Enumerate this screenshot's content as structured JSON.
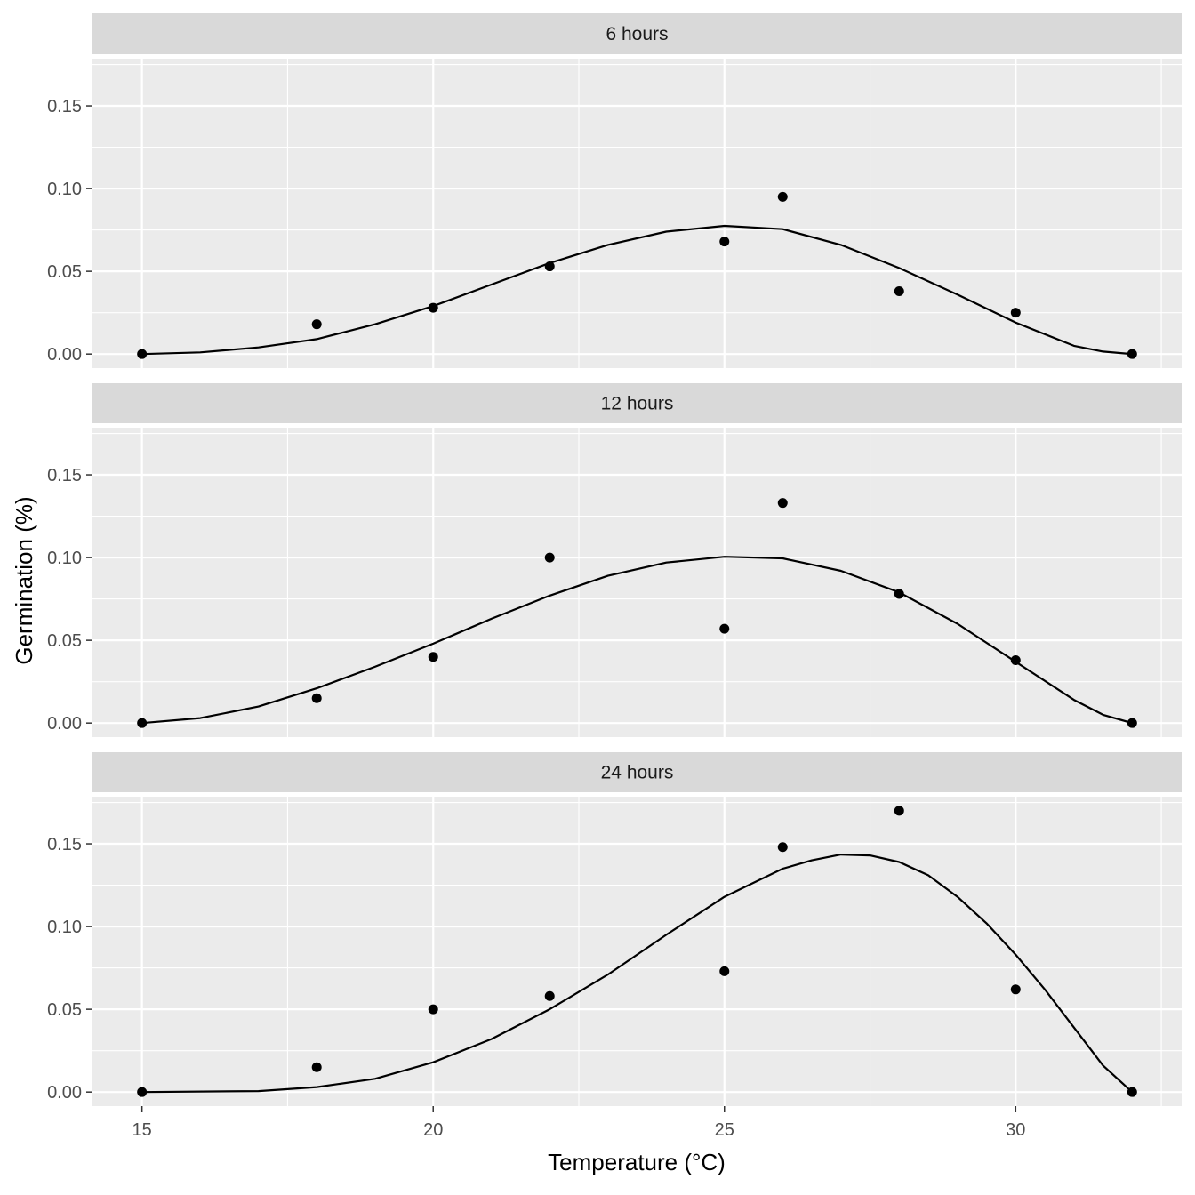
{
  "chart_data": {
    "type": "scatter",
    "facet_direction": "vertical",
    "xlabel": "Temperature (°C)",
    "ylabel": "Germination (%)",
    "xlim": [
      14.15,
      32.85
    ],
    "ylim": [
      -0.0085,
      0.1785
    ],
    "x_ticks": [
      15,
      20,
      25,
      30
    ],
    "x_tick_labels": [
      "15",
      "20",
      "25",
      "30"
    ],
    "x_minor_ticks": [
      17.5,
      22.5,
      27.5,
      32.5
    ],
    "y_ticks": [
      0,
      0.05,
      0.1,
      0.15
    ],
    "y_tick_labels": [
      "0.00",
      "0.05",
      "0.10",
      "0.15"
    ],
    "y_minor_ticks": [
      0.025,
      0.075,
      0.125,
      0.175
    ],
    "grid": true,
    "colors": {
      "panel_background": "#ebebeb",
      "strip_background": "#d9d9d9",
      "grid": "#ffffff",
      "points": "#000000",
      "fit_line": "#000000",
      "tick_text": "#4d4d4d"
    },
    "panels": [
      {
        "label": "6 hours",
        "points": {
          "x": [
            15,
            18,
            20,
            22,
            25,
            26,
            28,
            30,
            32
          ],
          "y": [
            0.0,
            0.018,
            0.028,
            0.053,
            0.068,
            0.095,
            0.038,
            0.025,
            0.0
          ]
        },
        "fit": {
          "x": [
            15,
            16,
            17,
            18,
            19,
            20,
            21,
            22,
            23,
            24,
            25,
            26,
            27,
            28,
            29,
            30,
            31,
            31.5,
            32
          ],
          "y": [
            0.0,
            0.001,
            0.004,
            0.009,
            0.018,
            0.029,
            0.042,
            0.055,
            0.066,
            0.074,
            0.0775,
            0.0755,
            0.066,
            0.052,
            0.036,
            0.019,
            0.005,
            0.0015,
            0.0
          ]
        }
      },
      {
        "label": "12 hours",
        "points": {
          "x": [
            15,
            18,
            20,
            22,
            25,
            26,
            28,
            30,
            32
          ],
          "y": [
            0.0,
            0.015,
            0.04,
            0.1,
            0.057,
            0.133,
            0.078,
            0.038,
            0.0
          ]
        },
        "fit": {
          "x": [
            15,
            16,
            17,
            18,
            19,
            20,
            21,
            22,
            23,
            24,
            25,
            26,
            27,
            28,
            29,
            30,
            31,
            31.5,
            32
          ],
          "y": [
            0.0,
            0.003,
            0.01,
            0.021,
            0.034,
            0.048,
            0.063,
            0.077,
            0.089,
            0.097,
            0.1005,
            0.0995,
            0.092,
            0.079,
            0.06,
            0.037,
            0.014,
            0.005,
            0.0
          ]
        }
      },
      {
        "label": "24 hours",
        "points": {
          "x": [
            15,
            18,
            20,
            22,
            25,
            26,
            28,
            30,
            32
          ],
          "y": [
            0.0,
            0.015,
            0.05,
            0.058,
            0.073,
            0.148,
            0.17,
            0.062,
            0.0
          ]
        },
        "fit": {
          "x": [
            15,
            17,
            18,
            19,
            20,
            21,
            22,
            23,
            24,
            25,
            26,
            26.5,
            27,
            27.5,
            28,
            28.5,
            29,
            29.5,
            30,
            30.5,
            31,
            31.5,
            32
          ],
          "y": [
            0.0,
            0.0006,
            0.003,
            0.008,
            0.018,
            0.032,
            0.05,
            0.071,
            0.095,
            0.118,
            0.135,
            0.14,
            0.1435,
            0.143,
            0.139,
            0.131,
            0.118,
            0.102,
            0.083,
            0.062,
            0.039,
            0.016,
            0.0
          ]
        }
      }
    ]
  }
}
